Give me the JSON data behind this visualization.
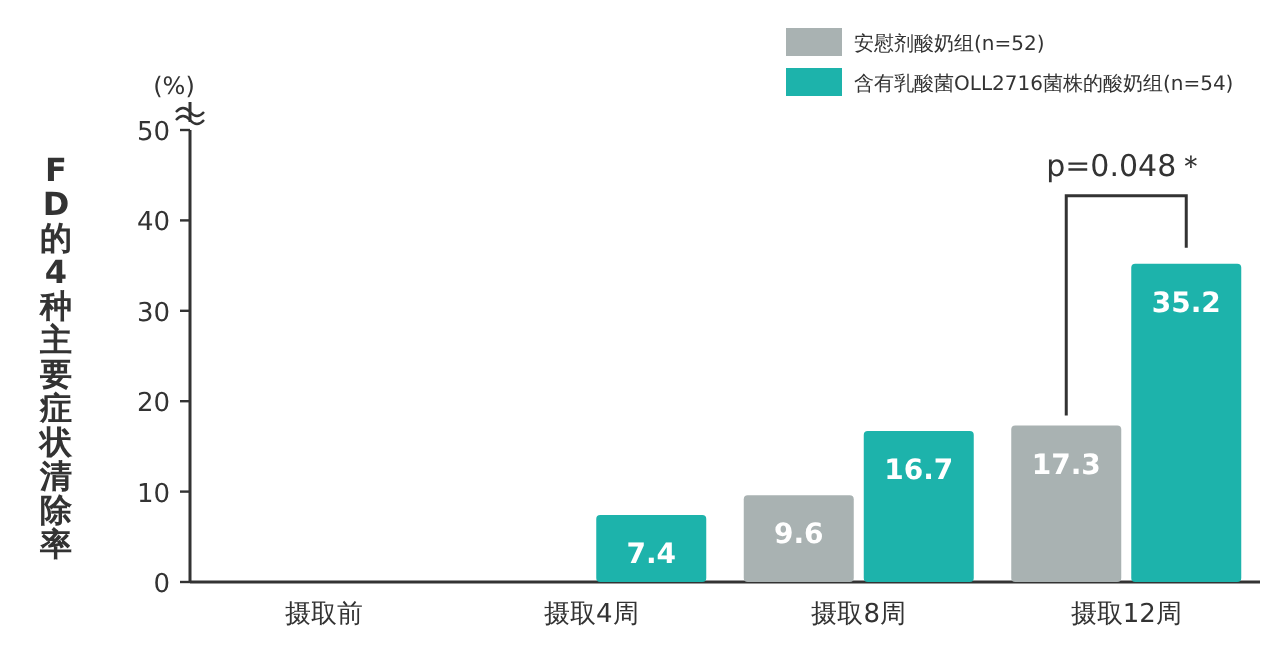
{
  "chart_data": {
    "type": "bar",
    "ylabel": "FD的4种主要症状清除率",
    "categories": [
      "摄取前",
      "摄取4周",
      "摄取8周",
      "摄取12周"
    ],
    "series": [
      {
        "name": "安慰剂酸奶组(n=52)",
        "color": "#a9b2b2",
        "values": [
          0,
          0,
          9.6,
          17.3
        ],
        "value_labels": [
          null,
          null,
          "9.6",
          "17.3"
        ]
      },
      {
        "name": "含有乳酸菌OLL2716菌株的酸奶组(n=54)",
        "color": "#1db3ab",
        "values": [
          0,
          7.4,
          16.7,
          35.2
        ],
        "value_labels": [
          null,
          "7.4",
          "16.7",
          "35.2"
        ]
      }
    ],
    "ylim": [
      0,
      50
    ],
    "yticks": [
      0,
      10,
      20,
      30,
      40,
      50
    ],
    "legend": "top right",
    "annotations": [
      "(%)",
      "p=0.048＊"
    ]
  }
}
